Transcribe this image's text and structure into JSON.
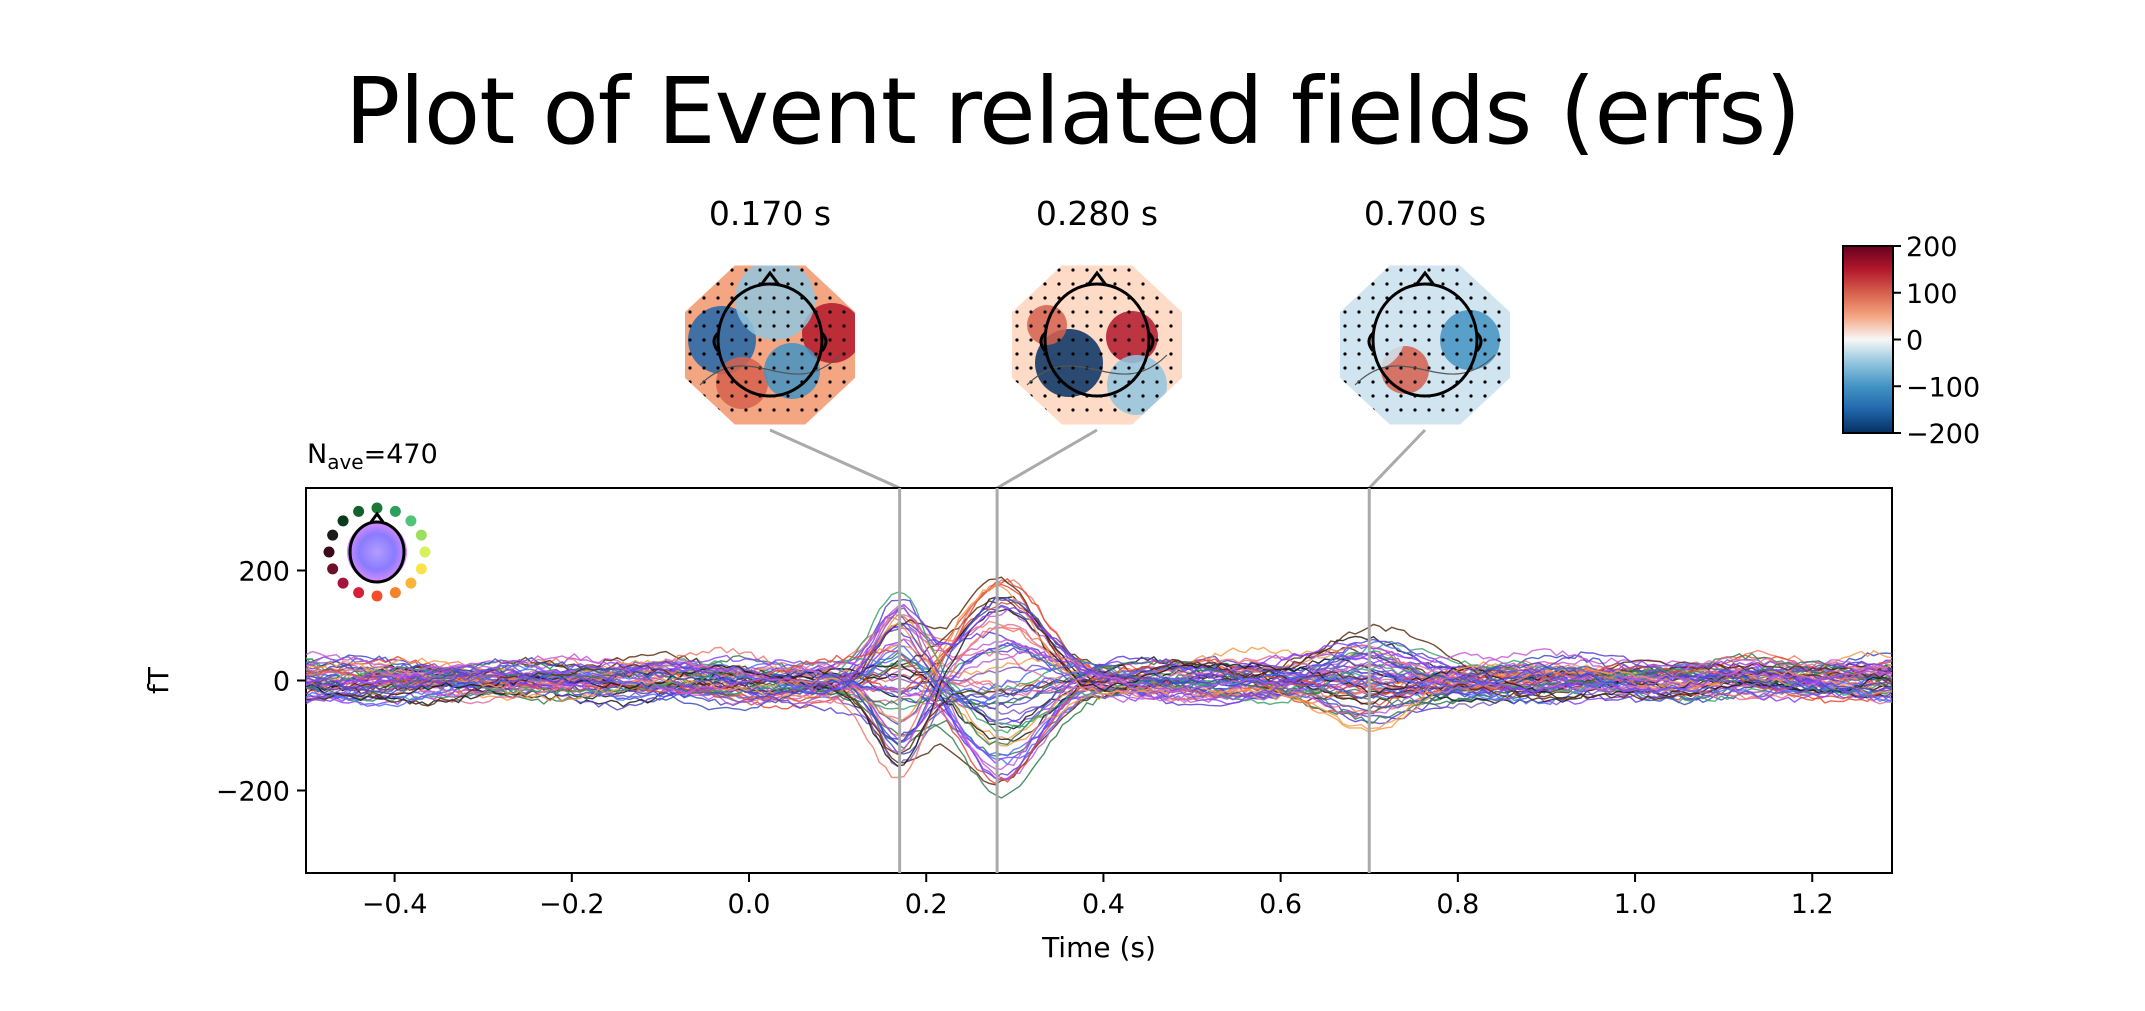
{
  "page": {
    "title": "Plot of Event related fields (erfs)"
  },
  "chart_data": {
    "type": "line",
    "annotation": {
      "prefix": "N",
      "subscript": "ave",
      "suffix": "=470"
    },
    "xlabel": "Time (s)",
    "ylabel": "fT",
    "xlim": [
      -0.5,
      1.29
    ],
    "ylim": [
      -350,
      350
    ],
    "xticks": [
      {
        "value": -0.4,
        "label": "−0.4"
      },
      {
        "value": -0.2,
        "label": "−0.2"
      },
      {
        "value": 0.0,
        "label": "0.0"
      },
      {
        "value": 0.2,
        "label": "0.2"
      },
      {
        "value": 0.4,
        "label": "0.4"
      },
      {
        "value": 0.6,
        "label": "0.6"
      },
      {
        "value": 0.8,
        "label": "0.8"
      },
      {
        "value": 1.0,
        "label": "1.0"
      },
      {
        "value": 1.2,
        "label": "1.2"
      }
    ],
    "yticks": [
      {
        "value": 200,
        "label": "200"
      },
      {
        "value": 0,
        "label": "0"
      },
      {
        "value": -200,
        "label": "−200"
      }
    ],
    "topomap_times": [
      {
        "time": 0.17,
        "label": "0.170 s"
      },
      {
        "time": 0.28,
        "label": "0.280 s"
      },
      {
        "time": 0.7,
        "label": "0.700 s"
      }
    ],
    "colorbar": {
      "range": [
        -200,
        200
      ],
      "ticks": [
        {
          "value": 200,
          "label": "200"
        },
        {
          "value": 100,
          "label": "100"
        },
        {
          "value": 0,
          "label": "0"
        },
        {
          "value": -100,
          "label": "−100"
        },
        {
          "value": -200,
          "label": "−200"
        }
      ],
      "colors": [
        "#053061",
        "#2166ac",
        "#4393c3",
        "#92c5de",
        "#f7f7f7",
        "#f4a582",
        "#d6604d",
        "#b2182b",
        "#67001f"
      ]
    },
    "marker_color": "#aaaaaa",
    "grid": false,
    "series_palette": [
      "#3b4cc0",
      "#5a3fd6",
      "#8a3ffc",
      "#c25bd6",
      "#e26fa0",
      "#f07a6a",
      "#e34a33",
      "#2f7d4f",
      "#3ba36b",
      "#1a1a1a",
      "#5b2a0e",
      "#f39c4a",
      "#4c6cff",
      "#7e57c2"
    ],
    "peaks": [
      {
        "time": 0.17,
        "amplitude": 210
      },
      {
        "time": 0.28,
        "amplitude": 210
      },
      {
        "time": 0.7,
        "amplitude": 130
      }
    ]
  }
}
